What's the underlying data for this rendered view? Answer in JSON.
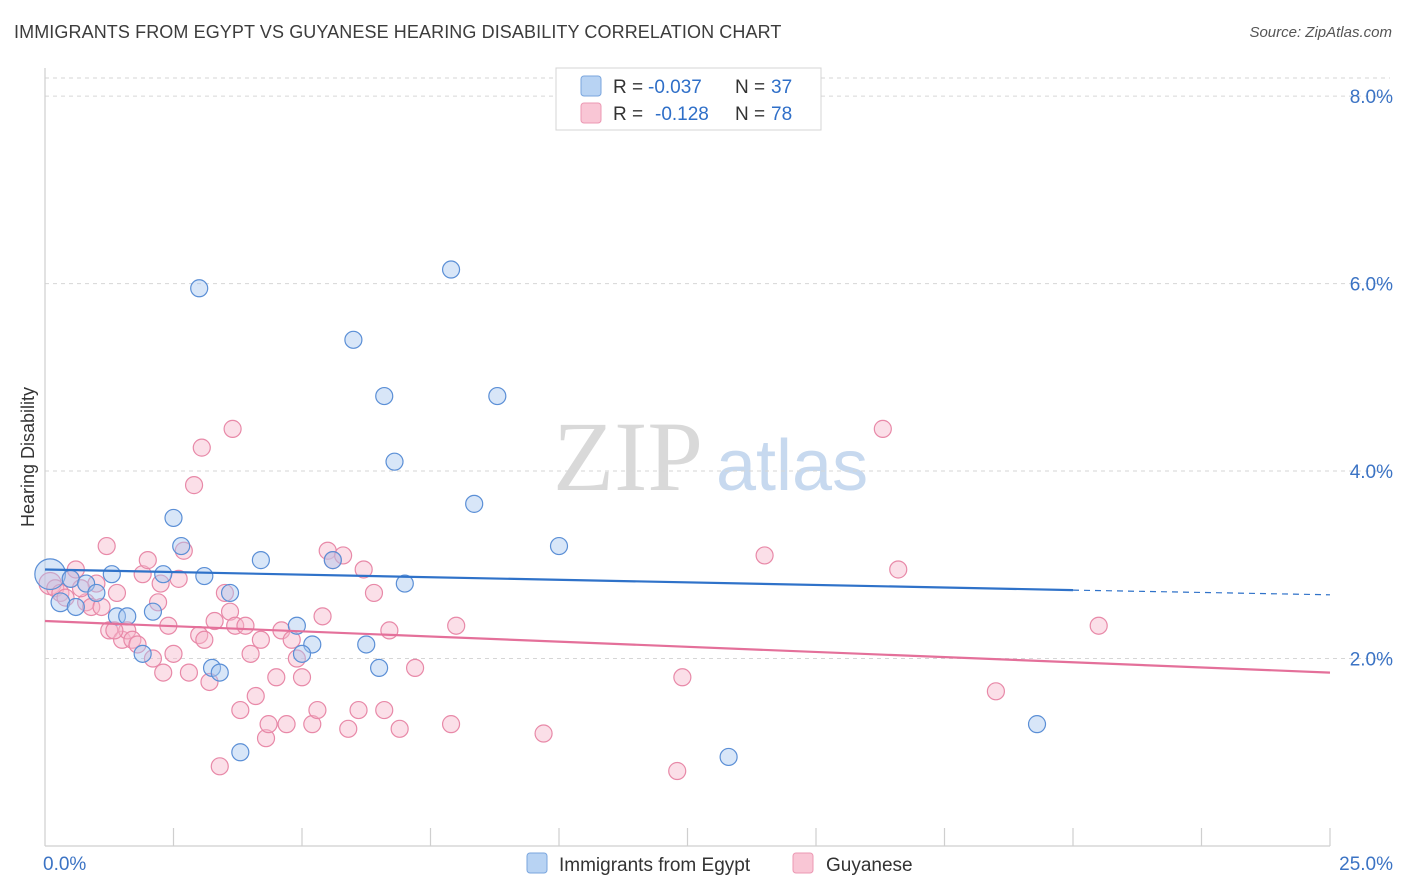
{
  "title": "IMMIGRANTS FROM EGYPT VS GUYANESE HEARING DISABILITY CORRELATION CHART",
  "source": "Source: ZipAtlas.com",
  "watermark": {
    "part1": "ZIP",
    "part2": "atlas"
  },
  "colors": {
    "egypt_fill": "#a8c8f0",
    "egypt_stroke": "#5b8fd6",
    "egypt_line": "#2f72c9",
    "guyanese_fill": "#f7b8cb",
    "guyanese_stroke": "#e889a8",
    "guyanese_line": "#e4709a",
    "tick_text": "#3b73c4",
    "grid": "#d6d6d6"
  },
  "legend_top": {
    "rows": [
      {
        "r_label": "R =",
        "r_value": "-0.037",
        "n_label": "N =",
        "n_value": "37"
      },
      {
        "r_label": "R =",
        "r_value": "-0.128",
        "n_label": "N =",
        "n_value": "78"
      }
    ]
  },
  "legend_bottom": {
    "items": [
      "Immigrants from Egypt",
      "Guyanese"
    ]
  },
  "chart_data": {
    "type": "scatter",
    "title": "IMMIGRANTS FROM EGYPT VS GUYANESE HEARING DISABILITY CORRELATION CHART",
    "xlabel": "",
    "ylabel": "Hearing Disability",
    "xlim": [
      0,
      25
    ],
    "ylim": [
      0,
      8.3
    ],
    "x_tick_labels": [
      {
        "value": 0,
        "label": "0.0%"
      },
      {
        "value": 25,
        "label": "25.0%"
      }
    ],
    "y_tick_labels": [
      {
        "value": 2,
        "label": "2.0%"
      },
      {
        "value": 4,
        "label": "4.0%"
      },
      {
        "value": 6,
        "label": "6.0%"
      },
      {
        "value": 8,
        "label": "8.0%"
      }
    ],
    "grid": "horizontal dashed",
    "legend_position": "top-center",
    "series": [
      {
        "name": "Immigrants from Egypt",
        "r": -0.037,
        "n": 37,
        "trend": {
          "x0": 0,
          "y0": 2.95,
          "x1": 20,
          "y1": 2.73,
          "dashed_to_x": 25,
          "dashed_to_y": 2.68
        },
        "points": [
          [
            0.1,
            2.9,
            1.8
          ],
          [
            0.3,
            2.6,
            1.1
          ],
          [
            0.5,
            2.85,
            1
          ],
          [
            0.6,
            2.55,
            1
          ],
          [
            0.8,
            2.8,
            1
          ],
          [
            1.0,
            2.7,
            1
          ],
          [
            1.3,
            2.9,
            1
          ],
          [
            1.4,
            2.45,
            1
          ],
          [
            1.6,
            2.45,
            1
          ],
          [
            1.9,
            2.05,
            1
          ],
          [
            2.1,
            2.5,
            1
          ],
          [
            2.3,
            2.9,
            1
          ],
          [
            2.5,
            3.5,
            1
          ],
          [
            2.65,
            3.2,
            1
          ],
          [
            3.0,
            5.95,
            1
          ],
          [
            3.1,
            2.88,
            1
          ],
          [
            3.25,
            1.9,
            1
          ],
          [
            3.4,
            1.85,
            1
          ],
          [
            3.6,
            2.7,
            1
          ],
          [
            3.8,
            1.0,
            1
          ],
          [
            4.2,
            3.05,
            1
          ],
          [
            4.9,
            2.35,
            1
          ],
          [
            5.2,
            2.15,
            1
          ],
          [
            5.6,
            3.05,
            1
          ],
          [
            6.0,
            5.4,
            1
          ],
          [
            6.25,
            2.15,
            1
          ],
          [
            6.5,
            1.9,
            1
          ],
          [
            6.6,
            4.8,
            1
          ],
          [
            6.8,
            4.1,
            1
          ],
          [
            7.0,
            2.8,
            1
          ],
          [
            7.9,
            6.15,
            1
          ],
          [
            8.35,
            3.65,
            1
          ],
          [
            8.8,
            4.8,
            1
          ],
          [
            10.0,
            3.2,
            1
          ],
          [
            13.3,
            0.95,
            1
          ],
          [
            19.3,
            1.3,
            1
          ],
          [
            5.0,
            2.05,
            1
          ]
        ]
      },
      {
        "name": "Guyanese",
        "r": -0.128,
        "n": 78,
        "trend": {
          "x0": 0,
          "y0": 2.4,
          "x1": 25,
          "y1": 1.85
        },
        "points": [
          [
            0.1,
            2.8,
            1.3
          ],
          [
            0.2,
            2.75,
            1
          ],
          [
            0.3,
            2.7,
            1
          ],
          [
            0.4,
            2.65,
            1
          ],
          [
            0.5,
            2.85,
            1
          ],
          [
            0.6,
            2.95,
            1
          ],
          [
            0.8,
            2.6,
            1
          ],
          [
            0.9,
            2.55,
            1
          ],
          [
            1.0,
            2.8,
            1
          ],
          [
            1.1,
            2.55,
            1
          ],
          [
            1.2,
            3.2,
            1
          ],
          [
            1.25,
            2.3,
            1
          ],
          [
            1.4,
            2.7,
            1
          ],
          [
            1.5,
            2.2,
            1
          ],
          [
            1.6,
            2.3,
            1
          ],
          [
            1.7,
            2.2,
            1
          ],
          [
            1.8,
            2.15,
            1
          ],
          [
            1.9,
            2.9,
            1
          ],
          [
            2.0,
            3.05,
            1
          ],
          [
            2.1,
            2.0,
            1
          ],
          [
            2.2,
            2.6,
            1
          ],
          [
            2.3,
            1.85,
            1
          ],
          [
            2.4,
            2.35,
            1
          ],
          [
            2.5,
            2.05,
            1
          ],
          [
            2.6,
            2.85,
            1
          ],
          [
            2.7,
            3.15,
            1
          ],
          [
            2.8,
            1.85,
            1
          ],
          [
            2.9,
            3.85,
            1
          ],
          [
            3.0,
            2.25,
            1
          ],
          [
            3.05,
            4.25,
            1
          ],
          [
            3.1,
            2.2,
            1
          ],
          [
            3.2,
            1.75,
            1
          ],
          [
            3.3,
            2.4,
            1
          ],
          [
            3.4,
            0.85,
            1
          ],
          [
            3.5,
            2.7,
            1
          ],
          [
            3.6,
            2.5,
            1
          ],
          [
            3.65,
            4.45,
            1
          ],
          [
            3.7,
            2.35,
            1
          ],
          [
            3.8,
            1.45,
            1
          ],
          [
            3.9,
            2.35,
            1
          ],
          [
            4.0,
            2.05,
            1
          ],
          [
            4.1,
            1.6,
            1
          ],
          [
            4.2,
            2.2,
            1
          ],
          [
            4.3,
            1.15,
            1
          ],
          [
            4.35,
            1.3,
            1
          ],
          [
            4.5,
            1.8,
            1
          ],
          [
            4.6,
            2.3,
            1
          ],
          [
            4.7,
            1.3,
            1
          ],
          [
            4.8,
            2.2,
            1
          ],
          [
            4.9,
            2.0,
            1
          ],
          [
            5.0,
            1.8,
            1
          ],
          [
            5.2,
            1.3,
            1
          ],
          [
            5.3,
            1.45,
            1
          ],
          [
            5.4,
            2.45,
            1
          ],
          [
            5.5,
            3.15,
            1
          ],
          [
            5.6,
            3.05,
            1
          ],
          [
            5.8,
            3.1,
            1
          ],
          [
            5.9,
            1.25,
            1
          ],
          [
            6.1,
            1.45,
            1
          ],
          [
            6.2,
            2.95,
            1
          ],
          [
            6.4,
            2.7,
            1
          ],
          [
            6.6,
            1.45,
            1
          ],
          [
            6.7,
            2.3,
            1
          ],
          [
            6.9,
            1.25,
            1
          ],
          [
            7.2,
            1.9,
            1
          ],
          [
            7.9,
            1.3,
            1
          ],
          [
            8.0,
            2.35,
            1
          ],
          [
            9.7,
            1.2,
            1
          ],
          [
            12.3,
            0.8,
            1
          ],
          [
            12.4,
            1.8,
            1
          ],
          [
            14.0,
            3.1,
            1
          ],
          [
            16.3,
            4.45,
            1
          ],
          [
            16.6,
            2.95,
            1
          ],
          [
            18.5,
            1.65,
            1
          ],
          [
            20.5,
            2.35,
            1
          ],
          [
            2.25,
            2.8,
            1
          ],
          [
            1.35,
            2.3,
            1
          ],
          [
            0.7,
            2.75,
            1
          ]
        ]
      }
    ]
  }
}
